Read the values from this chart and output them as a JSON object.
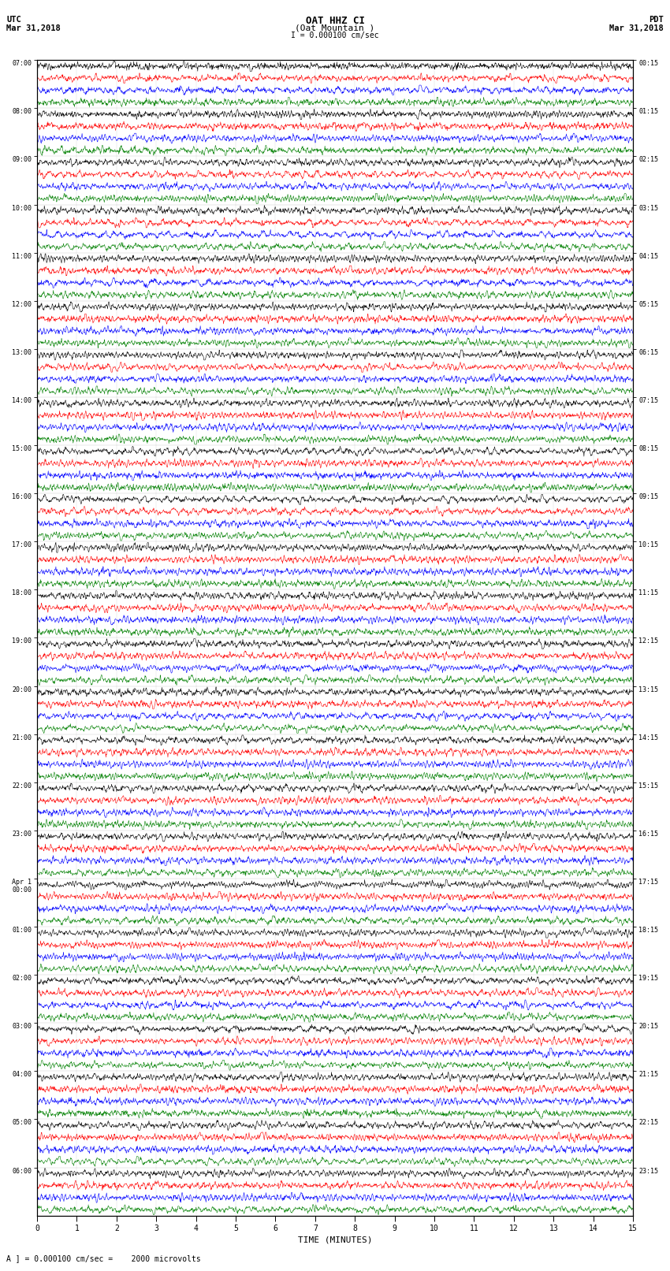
{
  "title_line1": "OAT HHZ CI",
  "title_line2": "(Oat Mountain )",
  "scale_bar": "I = 0.000100 cm/sec",
  "left_header1": "UTC",
  "left_header2": "Mar 31,2018",
  "right_header1": "PDT",
  "right_header2": "Mar 31,2018",
  "bottom_note": "A ] = 0.000100 cm/sec =    2000 microvolts",
  "xlabel": "TIME (MINUTES)",
  "left_times": [
    "07:00",
    "08:00",
    "09:00",
    "10:00",
    "11:00",
    "12:00",
    "13:00",
    "14:00",
    "15:00",
    "16:00",
    "17:00",
    "18:00",
    "19:00",
    "20:00",
    "21:00",
    "22:00",
    "23:00",
    "Apr 1\n00:00",
    "01:00",
    "02:00",
    "03:00",
    "04:00",
    "05:00",
    "06:00"
  ],
  "right_times": [
    "00:15",
    "01:15",
    "02:15",
    "03:15",
    "04:15",
    "05:15",
    "06:15",
    "07:15",
    "08:15",
    "09:15",
    "10:15",
    "11:15",
    "12:15",
    "13:15",
    "14:15",
    "15:15",
    "16:15",
    "17:15",
    "18:15",
    "19:15",
    "20:15",
    "21:15",
    "22:15",
    "23:15"
  ],
  "colors": [
    "black",
    "red",
    "blue",
    "green"
  ],
  "n_hour_blocks": 24,
  "traces_per_block": 4,
  "background_color": "white",
  "xmin": 0,
  "xmax": 15,
  "fig_width": 8.5,
  "fig_height": 16.13
}
